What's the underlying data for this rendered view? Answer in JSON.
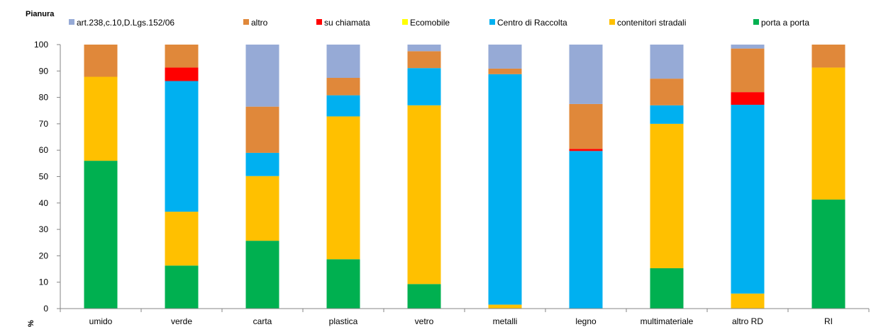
{
  "chart_data": {
    "type": "bar",
    "stacked": true,
    "title": "Pianura",
    "ylabel": "%",
    "xlabel": "",
    "ylim": [
      0,
      100
    ],
    "yticks": [
      0,
      10,
      20,
      30,
      40,
      50,
      60,
      70,
      80,
      90,
      100
    ],
    "grid": false,
    "legend_position": "top",
    "categories": [
      "umido",
      "verde",
      "carta",
      "plastica",
      "vetro",
      "metalli",
      "legno",
      "multimateriale",
      "altro RD",
      "RI"
    ],
    "series": [
      {
        "name": "porta a porta",
        "color": "#00b050",
        "values": [
          56,
          16.3,
          25.7,
          18.7,
          9.3,
          0,
          0,
          15.3,
          0,
          41.3
        ]
      },
      {
        "name": "contenitori stradali",
        "color": "#ffc000",
        "values": [
          31.8,
          20.4,
          24.5,
          54.1,
          67.7,
          1.5,
          0,
          54.7,
          5.7,
          50
        ]
      },
      {
        "name": "Centro di Raccolta",
        "color": "#00b0f0",
        "values": [
          0,
          49.5,
          8.8,
          8,
          14.1,
          87.3,
          59.7,
          7,
          71.5,
          0
        ]
      },
      {
        "name": "Ecomobile",
        "color": "#ffff00",
        "values": [
          0,
          0,
          0,
          0,
          0,
          0,
          0,
          0,
          0,
          0
        ]
      },
      {
        "name": "su chiamata",
        "color": "#ff0000",
        "values": [
          0,
          5.1,
          0,
          0,
          0,
          0,
          0.8,
          0,
          4.8,
          0
        ]
      },
      {
        "name": "altro",
        "color": "#e0883a",
        "values": [
          12.2,
          8.7,
          17.5,
          6.6,
          6.4,
          2.1,
          17,
          10.1,
          16.5,
          8.7
        ]
      },
      {
        "name": "art.238,c.10,D.Lgs.152/06",
        "color": "#96aad6",
        "values": [
          0,
          0,
          23.5,
          12.6,
          2.5,
          9.1,
          22.5,
          12.9,
          1.5,
          0
        ]
      }
    ],
    "legend_order": [
      "art.238,c.10,D.Lgs.152/06",
      "altro",
      "su chiamata",
      "Ecomobile",
      "Centro di Raccolta",
      "contenitori stradali",
      "porta a porta"
    ]
  }
}
